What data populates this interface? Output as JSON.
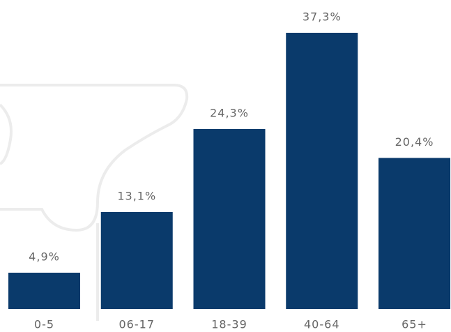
{
  "chart_data": {
    "type": "bar",
    "categories": [
      "0-5",
      "06-17",
      "18-39",
      "40-64",
      "65+"
    ],
    "values": [
      4.9,
      13.1,
      24.3,
      37.3,
      20.4
    ],
    "value_labels": [
      "4,9%",
      "13,1%",
      "24,3%",
      "37,3%",
      "20,4%"
    ],
    "color": "#0a3a6b"
  }
}
